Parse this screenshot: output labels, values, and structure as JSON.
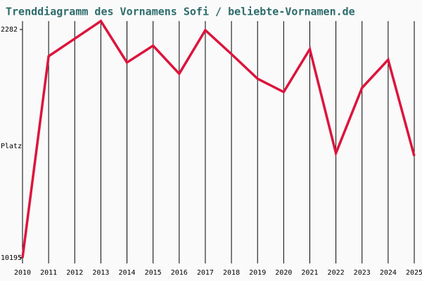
{
  "chart_data": {
    "type": "line",
    "title": "Trenddiagramm des Vornamens Sofi / beliebte-Vornamen.de",
    "y_label": "Platz",
    "x": [
      2010,
      2011,
      2012,
      2013,
      2014,
      2015,
      2016,
      2017,
      2018,
      2019,
      2020,
      2021,
      2022,
      2023,
      2024,
      2025
    ],
    "series": [
      {
        "name": "Sofi",
        "color": "#dc143c",
        "values": [
          10195,
          3207,
          2599,
          1990,
          3426,
          2842,
          3816,
          2306,
          3134,
          3987,
          4449,
          2964,
          6568,
          4303,
          3329,
          6665
        ]
      }
    ],
    "xlim": [
      2010,
      2025
    ],
    "xticks": [
      2010,
      2011,
      2012,
      2013,
      2014,
      2015,
      2016,
      2017,
      2018,
      2019,
      2020,
      2021,
      2022,
      2023,
      2024,
      2025
    ],
    "ylim": [
      10195,
      2282
    ],
    "yticks": [
      2282,
      10195
    ],
    "grid": "x"
  }
}
